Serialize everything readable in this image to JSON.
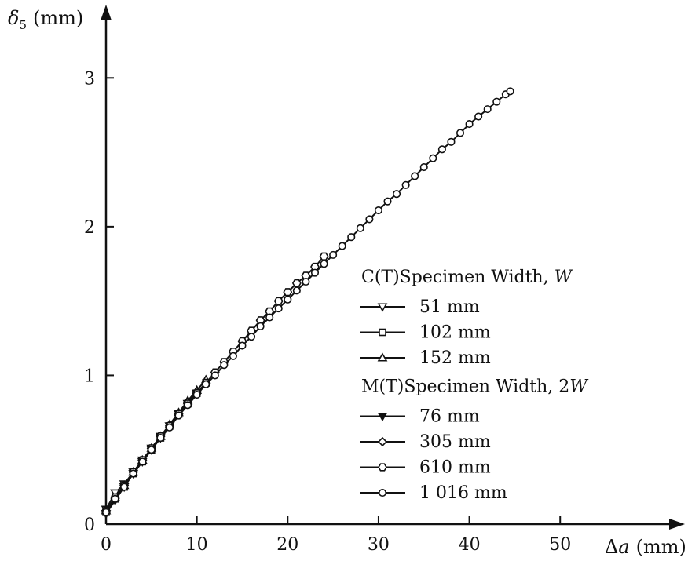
{
  "chart_data": {
    "type": "scatter",
    "x_axis": {
      "label_symbol": "Δ",
      "label_var": "a",
      "label_unit": "(mm)",
      "min": 0,
      "max": 62,
      "ticks": [
        0,
        10,
        20,
        30,
        40,
        50
      ],
      "tick_labels": [
        "0",
        "10",
        "20",
        "30",
        "40",
        "50"
      ]
    },
    "y_axis": {
      "label_symbol": "δ",
      "label_sub": "5",
      "label_unit": "(mm)",
      "min": 0,
      "max": 3.45,
      "ticks": [
        0,
        1,
        2,
        3
      ],
      "tick_labels": [
        "0",
        "1",
        "2",
        "3"
      ]
    },
    "grid": false,
    "legend": {
      "placement": "right",
      "groups": [
        {
          "title_text": "C(T)Specimen Width, ",
          "title_var": "W",
          "entries": [
            {
              "label": "51 mm",
              "marker": "triangle-down"
            },
            {
              "label": "102 mm",
              "marker": "square"
            },
            {
              "label": "152 mm",
              "marker": "triangle-up"
            }
          ]
        },
        {
          "title_text": "M(T)Specimen Width, 2",
          "title_var": "W",
          "entries": [
            {
              "label": "76 mm",
              "marker": "triangle-down-filled"
            },
            {
              "label": "305 mm",
              "marker": "diamond"
            },
            {
              "label": "610 mm",
              "marker": "hexagon"
            },
            {
              "label": "1 016 mm",
              "marker": "circle"
            }
          ]
        }
      ]
    },
    "series": [
      {
        "name": "51 mm",
        "marker": "triangle-down",
        "x": [
          0,
          1,
          2,
          3,
          4,
          5,
          6,
          7,
          8,
          9,
          10
        ],
        "y": [
          0.1,
          0.21,
          0.27,
          0.35,
          0.43,
          0.51,
          0.59,
          0.66,
          0.74,
          0.81,
          0.88
        ]
      },
      {
        "name": "102 mm",
        "marker": "square",
        "x": [
          0,
          1,
          2,
          3,
          4,
          5,
          6,
          7,
          8,
          9,
          10,
          11
        ],
        "y": [
          0.08,
          0.17,
          0.25,
          0.34,
          0.42,
          0.5,
          0.58,
          0.66,
          0.74,
          0.81,
          0.88,
          0.95
        ]
      },
      {
        "name": "152 mm",
        "marker": "triangle-up",
        "x": [
          0,
          1,
          2,
          3,
          4,
          5,
          6,
          7,
          8,
          9,
          10,
          11
        ],
        "y": [
          0.09,
          0.18,
          0.26,
          0.35,
          0.43,
          0.51,
          0.59,
          0.67,
          0.75,
          0.83,
          0.9,
          0.97
        ]
      },
      {
        "name": "76 mm",
        "marker": "triangle-down-filled",
        "x": [
          0,
          1,
          2,
          3,
          4,
          5,
          6,
          7,
          8,
          9,
          10
        ],
        "y": [
          0.07,
          0.16,
          0.25,
          0.34,
          0.42,
          0.5,
          0.58,
          0.66,
          0.74,
          0.81,
          0.88
        ]
      },
      {
        "name": "305 mm",
        "marker": "diamond",
        "x": [
          0,
          1,
          2,
          3,
          4,
          5,
          6,
          7,
          8,
          9,
          10
        ],
        "y": [
          0.08,
          0.17,
          0.26,
          0.35,
          0.43,
          0.51,
          0.59,
          0.66,
          0.74,
          0.82,
          0.89
        ]
      },
      {
        "name": "610 mm",
        "marker": "hexagon",
        "x": [
          0,
          1,
          2,
          3,
          4,
          5,
          6,
          7,
          8,
          9,
          10,
          11,
          12,
          13,
          14,
          15,
          16,
          17,
          18,
          19,
          20,
          21,
          22,
          23,
          24
        ],
        "y": [
          0.09,
          0.18,
          0.26,
          0.35,
          0.43,
          0.51,
          0.59,
          0.66,
          0.74,
          0.81,
          0.88,
          0.95,
          1.02,
          1.09,
          1.16,
          1.23,
          1.3,
          1.37,
          1.43,
          1.5,
          1.56,
          1.62,
          1.67,
          1.73,
          1.8
        ]
      },
      {
        "name": "1 016 mm",
        "marker": "circle",
        "x": [
          0,
          1,
          2,
          3,
          4,
          5,
          6,
          7,
          8,
          9,
          10,
          11,
          12,
          13,
          14,
          15,
          16,
          17,
          18,
          19,
          20,
          21,
          22,
          23,
          24,
          25,
          26,
          27,
          28,
          29,
          30,
          31,
          32,
          33,
          34,
          35,
          36,
          37,
          38,
          39,
          40,
          41,
          42,
          43,
          44,
          44.5
        ],
        "y": [
          0.08,
          0.17,
          0.25,
          0.34,
          0.42,
          0.5,
          0.58,
          0.65,
          0.73,
          0.8,
          0.87,
          0.94,
          1.0,
          1.07,
          1.13,
          1.2,
          1.26,
          1.33,
          1.39,
          1.45,
          1.51,
          1.57,
          1.63,
          1.69,
          1.75,
          1.81,
          1.87,
          1.93,
          1.99,
          2.05,
          2.11,
          2.17,
          2.22,
          2.28,
          2.34,
          2.4,
          2.46,
          2.52,
          2.57,
          2.63,
          2.69,
          2.74,
          2.79,
          2.84,
          2.89,
          2.91
        ]
      }
    ]
  }
}
